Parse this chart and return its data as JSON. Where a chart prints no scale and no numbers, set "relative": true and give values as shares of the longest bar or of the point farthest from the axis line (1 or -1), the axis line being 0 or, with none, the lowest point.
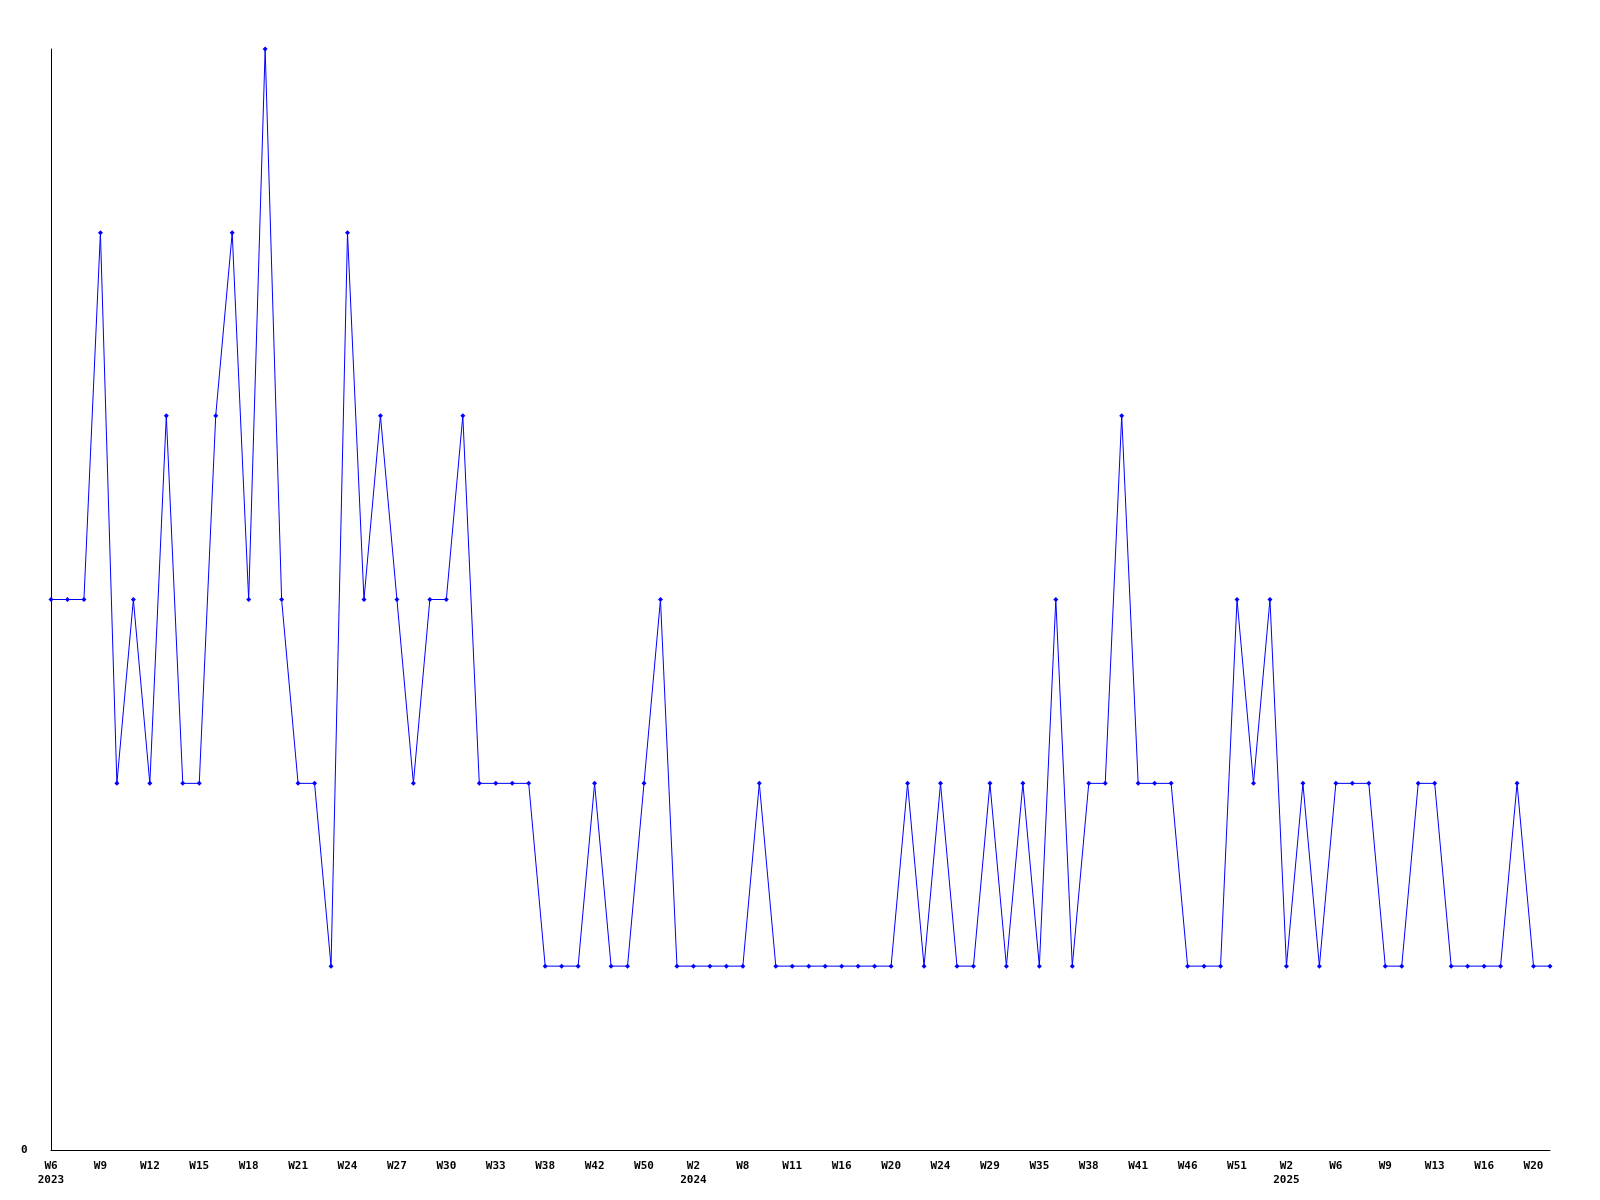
{
  "chart_data": {
    "type": "line",
    "relative": true,
    "color": "#0000ff",
    "marker": "diamond",
    "line_style": "solid",
    "grid": false,
    "annotations": [
      "0"
    ],
    "categories": [
      "W6\n2023",
      null,
      null,
      "W9",
      null,
      null,
      "W12",
      null,
      null,
      "W15",
      null,
      null,
      "W18",
      null,
      null,
      "W21",
      null,
      null,
      "W24",
      null,
      null,
      "W27",
      null,
      null,
      "W30",
      null,
      null,
      "W33",
      null,
      null,
      "W38",
      null,
      null,
      "W42",
      null,
      null,
      "W50",
      null,
      null,
      "W2\n2024",
      null,
      null,
      "W8",
      null,
      null,
      "W11",
      null,
      null,
      "W16",
      null,
      null,
      "W20",
      null,
      null,
      "W24",
      null,
      null,
      "W29",
      null,
      null,
      "W35",
      null,
      null,
      "W38",
      null,
      null,
      "W41",
      null,
      null,
      "W46",
      null,
      null,
      "W51",
      null,
      null,
      "W2\n2025",
      null,
      null,
      "W6",
      null,
      null,
      "W9",
      null,
      null,
      "W13",
      null,
      null,
      "W16",
      null,
      null,
      "W20",
      null
    ],
    "values": [
      0.5,
      0.5,
      0.5,
      0.833,
      0.333,
      0.5,
      0.333,
      0.667,
      0.333,
      0.333,
      0.667,
      0.833,
      0.5,
      1,
      0.5,
      0.333,
      0.333,
      0.167,
      0.833,
      0.5,
      0.667,
      0.5,
      0.333,
      0.5,
      0.5,
      0.667,
      0.333,
      0.333,
      0.333,
      0.333,
      0.167,
      0.167,
      0.167,
      0.333,
      0.167,
      0.167,
      0.333,
      0.5,
      0.167,
      0.167,
      0.167,
      0.167,
      0.167,
      0.333,
      0.167,
      0.167,
      0.167,
      0.167,
      0.167,
      0.167,
      0.167,
      0.167,
      0.333,
      0.167,
      0.333,
      0.167,
      0.167,
      0.333,
      0.167,
      0.333,
      0.167,
      0.5,
      0.167,
      0.333,
      0.333,
      0.667,
      0.333,
      0.333,
      0.333,
      0.167,
      0.167,
      0.167,
      0.5,
      0.333,
      0.5,
      0.167,
      0.333,
      0.167,
      0.333,
      0.333,
      0.333,
      0.167,
      0.167,
      0.333,
      0.333,
      0.167,
      0.167,
      0.167,
      0.167,
      0.333,
      0.167,
      0.167
    ]
  }
}
